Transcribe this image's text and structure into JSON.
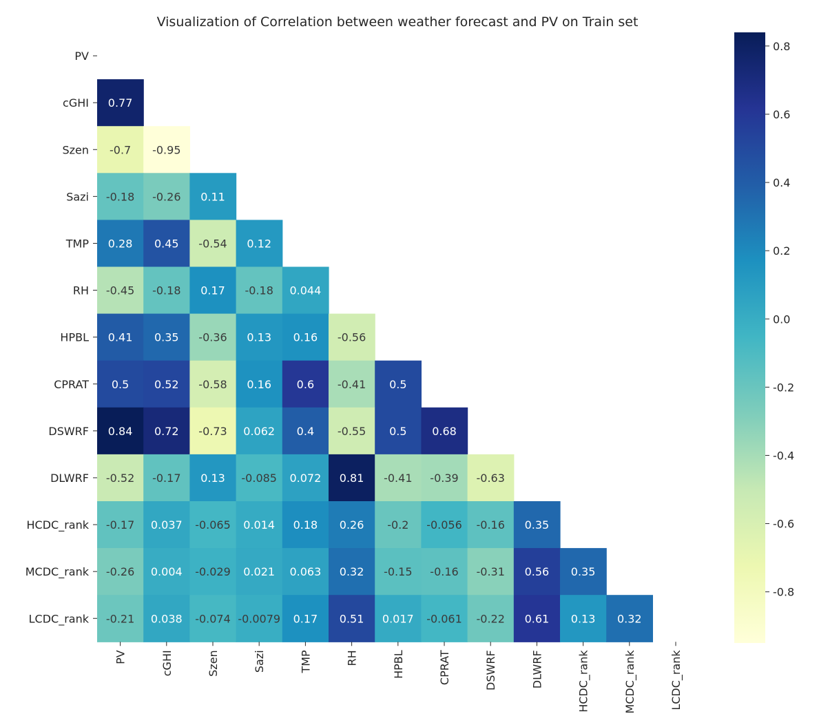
{
  "chart_data": {
    "type": "heatmap",
    "title": "Visualization of Correlation between weather forecast and PV on Train set",
    "labels": [
      "PV",
      "cGHI",
      "Szen",
      "Sazi",
      "TMP",
      "RH",
      "HPBL",
      "CPRAT",
      "DSWRF",
      "DLWRF",
      "HCDC_rank",
      "MCDC_rank",
      "LCDC_rank"
    ],
    "mask": "upper-triangle-including-diagonal",
    "rows": [
      {
        "label": "PV",
        "values": []
      },
      {
        "label": "cGHI",
        "values": [
          0.77
        ]
      },
      {
        "label": "Szen",
        "values": [
          -0.7,
          -0.95
        ]
      },
      {
        "label": "Sazi",
        "values": [
          -0.18,
          -0.26,
          0.11
        ]
      },
      {
        "label": "TMP",
        "values": [
          0.28,
          0.45,
          -0.54,
          0.12
        ]
      },
      {
        "label": "RH",
        "values": [
          -0.45,
          -0.18,
          0.17,
          -0.18,
          0.044
        ]
      },
      {
        "label": "HPBL",
        "values": [
          0.41,
          0.35,
          -0.36,
          0.13,
          0.16,
          -0.56
        ]
      },
      {
        "label": "CPRAT",
        "values": [
          0.5,
          0.52,
          -0.58,
          0.16,
          0.6,
          -0.41,
          0.5
        ]
      },
      {
        "label": "DSWRF",
        "values": [
          0.84,
          0.72,
          -0.73,
          0.062,
          0.4,
          -0.55,
          0.5,
          0.68
        ]
      },
      {
        "label": "DLWRF",
        "values": [
          -0.52,
          -0.17,
          0.13,
          -0.085,
          0.072,
          0.81,
          -0.41,
          -0.39,
          -0.63
        ]
      },
      {
        "label": "HCDC_rank",
        "values": [
          -0.17,
          0.037,
          -0.065,
          0.014,
          0.18,
          0.26,
          -0.2,
          -0.056,
          -0.16,
          0.35
        ]
      },
      {
        "label": "MCDC_rank",
        "values": [
          -0.26,
          0.004,
          -0.029,
          0.021,
          0.063,
          0.32,
          -0.15,
          -0.16,
          -0.31,
          0.56,
          0.35
        ]
      },
      {
        "label": "LCDC_rank",
        "values": [
          -0.21,
          0.038,
          -0.074,
          -0.0079,
          0.17,
          0.51,
          0.017,
          -0.061,
          -0.22,
          0.61,
          0.13,
          0.32
        ]
      }
    ],
    "colorbar": {
      "colormap": "YlGnBu",
      "range": [
        -0.95,
        0.84
      ],
      "ticks": [
        "0.8",
        "0.6",
        "0.4",
        "0.2",
        "0.0",
        "-0.2",
        "-0.4",
        "-0.6",
        "-0.8"
      ]
    },
    "colors": [
      "#ffffd9",
      "#edf8b1",
      "#c7e9b4",
      "#7fcdbb",
      "#41b6c4",
      "#1d91c0",
      "#225ea8",
      "#253494",
      "#081d58"
    ]
  }
}
